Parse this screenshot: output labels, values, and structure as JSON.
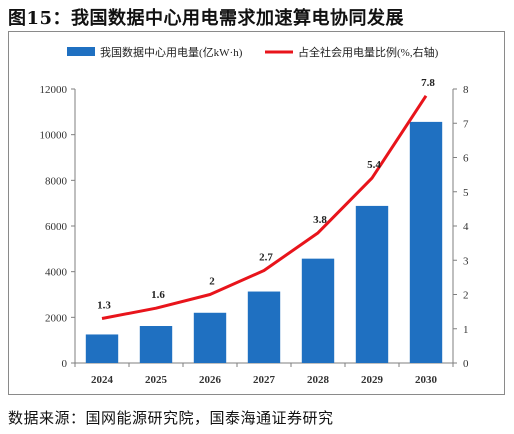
{
  "title": "图15：我国数据中心用电需求加速算电协同发展",
  "source": "数据来源：国网能源研究院，国泰海通证券研究",
  "colors": {
    "bar": "#1f70c1",
    "line": "#e8141b",
    "axis": "#7f7f7f"
  },
  "chart_data": {
    "type": "bar+line",
    "categories": [
      "2024",
      "2025",
      "2026",
      "2027",
      "2028",
      "2029",
      "2030"
    ],
    "series": [
      {
        "name": "我国数据中心用电量(亿kW·h)",
        "type": "bar",
        "axis": "left",
        "values": [
          1250,
          1620,
          2200,
          3130,
          4570,
          6880,
          10560
        ]
      },
      {
        "name": "占全社会用电量比例(%,右轴)",
        "type": "line",
        "axis": "right",
        "values": [
          1.3,
          1.6,
          2,
          2.7,
          3.8,
          5.4,
          7.8
        ],
        "labels": [
          "1.3",
          "1.6",
          "2",
          "2.7",
          "3.8",
          "5.4",
          "7.8"
        ]
      }
    ],
    "y_left": {
      "min": 0,
      "max": 12000,
      "step": 2000,
      "ticks": [
        "0",
        "2000",
        "4000",
        "6000",
        "8000",
        "10000",
        "12000"
      ]
    },
    "y_right": {
      "min": 0,
      "max": 8,
      "step": 1,
      "ticks": [
        "0",
        "1",
        "2",
        "3",
        "4",
        "5",
        "6",
        "7",
        "8"
      ]
    },
    "legend_position": "top",
    "grid": false
  }
}
